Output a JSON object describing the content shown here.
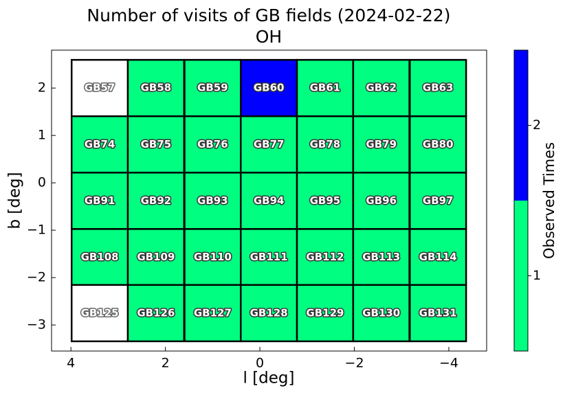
{
  "chart_data": {
    "type": "field-grid",
    "title": "Number of visits of GB fields (2024-02-22)",
    "subtitle": "OH",
    "x_label": "l [deg]",
    "y_label": "b [deg]",
    "xlim": [
      4.41,
      -4.8
    ],
    "ylim": [
      -3.55,
      2.8
    ],
    "xticks": [
      4,
      2,
      0,
      {
        "value": -2,
        "label": "−2"
      },
      {
        "value": -4,
        "label": "−4"
      }
    ],
    "yticks": [
      2,
      1,
      0,
      {
        "value": -1,
        "label": "−1"
      },
      {
        "value": -2,
        "label": "−2"
      },
      {
        "value": -3,
        "label": "−3"
      }
    ],
    "cell_size": 1.19,
    "empty_color": "#ffffff",
    "cells": [
      {
        "name": "GB57",
        "l": 3.39,
        "b": 2.0,
        "value": 0
      },
      {
        "name": "GB58",
        "l": 2.2,
        "b": 2.0,
        "value": 1
      },
      {
        "name": "GB59",
        "l": 1.0,
        "b": 2.0,
        "value": 1
      },
      {
        "name": "GB60",
        "l": -0.19,
        "b": 2.0,
        "value": 2
      },
      {
        "name": "GB61",
        "l": -1.38,
        "b": 2.0,
        "value": 1
      },
      {
        "name": "GB62",
        "l": -2.57,
        "b": 2.0,
        "value": 1
      },
      {
        "name": "GB63",
        "l": -3.77,
        "b": 2.0,
        "value": 1
      },
      {
        "name": "GB74",
        "l": 3.39,
        "b": 0.81,
        "value": 1
      },
      {
        "name": "GB75",
        "l": 2.2,
        "b": 0.81,
        "value": 1
      },
      {
        "name": "GB76",
        "l": 1.0,
        "b": 0.81,
        "value": 1
      },
      {
        "name": "GB77",
        "l": -0.19,
        "b": 0.81,
        "value": 1
      },
      {
        "name": "GB78",
        "l": -1.38,
        "b": 0.81,
        "value": 1
      },
      {
        "name": "GB79",
        "l": -2.57,
        "b": 0.81,
        "value": 1
      },
      {
        "name": "GB80",
        "l": -3.77,
        "b": 0.81,
        "value": 1
      },
      {
        "name": "GB91",
        "l": 3.39,
        "b": -0.38,
        "value": 1
      },
      {
        "name": "GB92",
        "l": 2.2,
        "b": -0.38,
        "value": 1
      },
      {
        "name": "GB93",
        "l": 1.0,
        "b": -0.38,
        "value": 1
      },
      {
        "name": "GB94",
        "l": -0.19,
        "b": -0.38,
        "value": 1
      },
      {
        "name": "GB95",
        "l": -1.38,
        "b": -0.38,
        "value": 1
      },
      {
        "name": "GB96",
        "l": -2.57,
        "b": -0.38,
        "value": 1
      },
      {
        "name": "GB97",
        "l": -3.77,
        "b": -0.38,
        "value": 1
      },
      {
        "name": "GB108",
        "l": 3.39,
        "b": -1.57,
        "value": 1
      },
      {
        "name": "GB109",
        "l": 2.2,
        "b": -1.57,
        "value": 1
      },
      {
        "name": "GB110",
        "l": 1.0,
        "b": -1.57,
        "value": 1
      },
      {
        "name": "GB111",
        "l": -0.19,
        "b": -1.57,
        "value": 1
      },
      {
        "name": "GB112",
        "l": -1.38,
        "b": -1.57,
        "value": 1
      },
      {
        "name": "GB113",
        "l": -2.57,
        "b": -1.57,
        "value": 1
      },
      {
        "name": "GB114",
        "l": -3.77,
        "b": -1.57,
        "value": 1
      },
      {
        "name": "GB125",
        "l": 3.39,
        "b": -2.75,
        "value": 0
      },
      {
        "name": "GB126",
        "l": 2.2,
        "b": -2.75,
        "value": 1
      },
      {
        "name": "GB127",
        "l": 1.0,
        "b": -2.75,
        "value": 1
      },
      {
        "name": "GB128",
        "l": -0.19,
        "b": -2.75,
        "value": 1
      },
      {
        "name": "GB129",
        "l": -1.38,
        "b": -2.75,
        "value": 1
      },
      {
        "name": "GB130",
        "l": -2.57,
        "b": -2.75,
        "value": 1
      },
      {
        "name": "GB131",
        "l": -3.77,
        "b": -2.75,
        "value": 1
      }
    ],
    "colorbar": {
      "label": "Observed Times",
      "lim": [
        0.5,
        2.5
      ],
      "ticks": [
        1,
        2
      ],
      "colors": [
        "#00ff80",
        "#0000ff"
      ]
    }
  }
}
